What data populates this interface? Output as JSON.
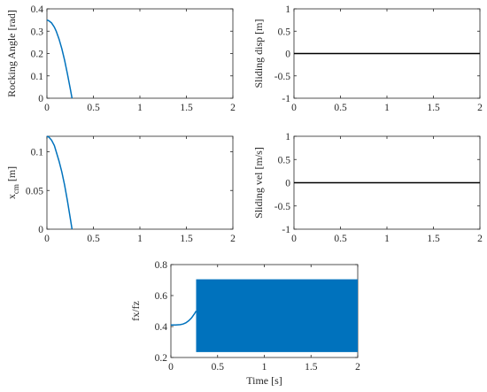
{
  "chart_data": [
    {
      "type": "line",
      "ylabel": "Rocking Angle [rad]",
      "xlabel": "",
      "xlim": [
        0,
        2
      ],
      "ylim": [
        0,
        0.4
      ],
      "xticks": [
        "0",
        "0.5",
        "1",
        "1.5",
        "2"
      ],
      "yticks": [
        "0",
        "0.1",
        "0.2",
        "0.3",
        "0.4"
      ],
      "series": [
        {
          "x": [
            0,
            0.02,
            0.05,
            0.08,
            0.1,
            0.13,
            0.16,
            0.19,
            0.22,
            0.25,
            0.27
          ],
          "y": [
            0.35,
            0.347,
            0.337,
            0.318,
            0.3,
            0.265,
            0.222,
            0.17,
            0.11,
            0.045,
            0.0
          ]
        }
      ],
      "color": "#0072BD"
    },
    {
      "type": "line",
      "ylabel": "Sliding disp [m]",
      "xlabel": "",
      "xlim": [
        0,
        2
      ],
      "ylim": [
        -1,
        1
      ],
      "xticks": [
        "0",
        "0.5",
        "1",
        "1.5",
        "2"
      ],
      "yticks": [
        "-1",
        "-0.5",
        "0",
        "0.5",
        "1"
      ],
      "series": [
        {
          "x": [
            0,
            2
          ],
          "y": [
            0,
            0
          ]
        }
      ],
      "color": "#000000"
    },
    {
      "type": "line",
      "ylabel_main": "x",
      "ylabel_sub": "cm",
      "ylabel_unit": " [m]",
      "xlabel": "",
      "xlim": [
        0,
        2
      ],
      "ylim": [
        0,
        0.12
      ],
      "xticks": [
        "0",
        "0.5",
        "1",
        "1.5",
        "2"
      ],
      "yticks": [
        "0",
        "0.05",
        "0.1"
      ],
      "series": [
        {
          "x": [
            0,
            0.02,
            0.05,
            0.08,
            0.1,
            0.13,
            0.16,
            0.19,
            0.22,
            0.25,
            0.27
          ],
          "y": [
            0.12,
            0.119,
            0.115,
            0.108,
            0.1,
            0.088,
            0.074,
            0.057,
            0.037,
            0.015,
            0.0
          ]
        }
      ],
      "color": "#0072BD"
    },
    {
      "type": "line",
      "ylabel": "Sliding vel [m/s]",
      "xlabel": "",
      "xlim": [
        0,
        2
      ],
      "ylim": [
        -1,
        1
      ],
      "xticks": [
        "0",
        "0.5",
        "1",
        "1.5",
        "2"
      ],
      "yticks": [
        "-1",
        "-0.5",
        "0",
        "0.5",
        "1"
      ],
      "series": [
        {
          "x": [
            0,
            2
          ],
          "y": [
            0,
            0
          ]
        }
      ],
      "color": "#000000"
    },
    {
      "type": "line",
      "ylabel": "fx/fz",
      "xlabel": "Time [s]",
      "xlim": [
        0,
        2
      ],
      "ylim": [
        0.2,
        0.8
      ],
      "xticks": [
        "0",
        "0.5",
        "1",
        "1.5",
        "2"
      ],
      "yticks": [
        "0.2",
        "0.4",
        "0.6",
        "0.8"
      ],
      "series": [
        {
          "x": [
            0,
            0.05,
            0.1,
            0.13,
            0.16,
            0.19,
            0.22,
            0.25,
            0.27
          ],
          "y": [
            0.41,
            0.41,
            0.412,
            0.416,
            0.424,
            0.437,
            0.455,
            0.48,
            0.5
          ]
        }
      ],
      "band": {
        "x_start": 0.27,
        "x_end": 2.0,
        "y_min": 0.235,
        "y_max": 0.705
      },
      "color": "#0072BD"
    }
  ]
}
